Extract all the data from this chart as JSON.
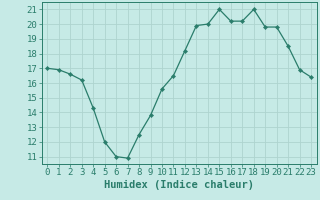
{
  "x": [
    0,
    1,
    2,
    3,
    4,
    5,
    6,
    7,
    8,
    9,
    10,
    11,
    12,
    13,
    14,
    15,
    16,
    17,
    18,
    19,
    20,
    21,
    22,
    23
  ],
  "y": [
    17.0,
    16.9,
    16.6,
    16.2,
    14.3,
    12.0,
    11.0,
    10.9,
    12.5,
    13.8,
    15.6,
    16.5,
    18.2,
    19.9,
    20.0,
    21.0,
    20.2,
    20.2,
    21.0,
    19.8,
    19.8,
    18.5,
    16.9,
    16.4
  ],
  "line_color": "#2a7d6b",
  "marker": "D",
  "marker_size": 2.2,
  "bg_color": "#c6eae6",
  "grid_color": "#aed4cf",
  "axis_color": "#2a7d6b",
  "xlabel": "Humidex (Indice chaleur)",
  "ylim": [
    10.5,
    21.5
  ],
  "xlim": [
    -0.5,
    23.5
  ],
  "yticks": [
    11,
    12,
    13,
    14,
    15,
    16,
    17,
    18,
    19,
    20,
    21
  ],
  "xticks": [
    0,
    1,
    2,
    3,
    4,
    5,
    6,
    7,
    8,
    9,
    10,
    11,
    12,
    13,
    14,
    15,
    16,
    17,
    18,
    19,
    20,
    21,
    22,
    23
  ],
  "font_size": 6.5,
  "label_font_size": 7.5
}
